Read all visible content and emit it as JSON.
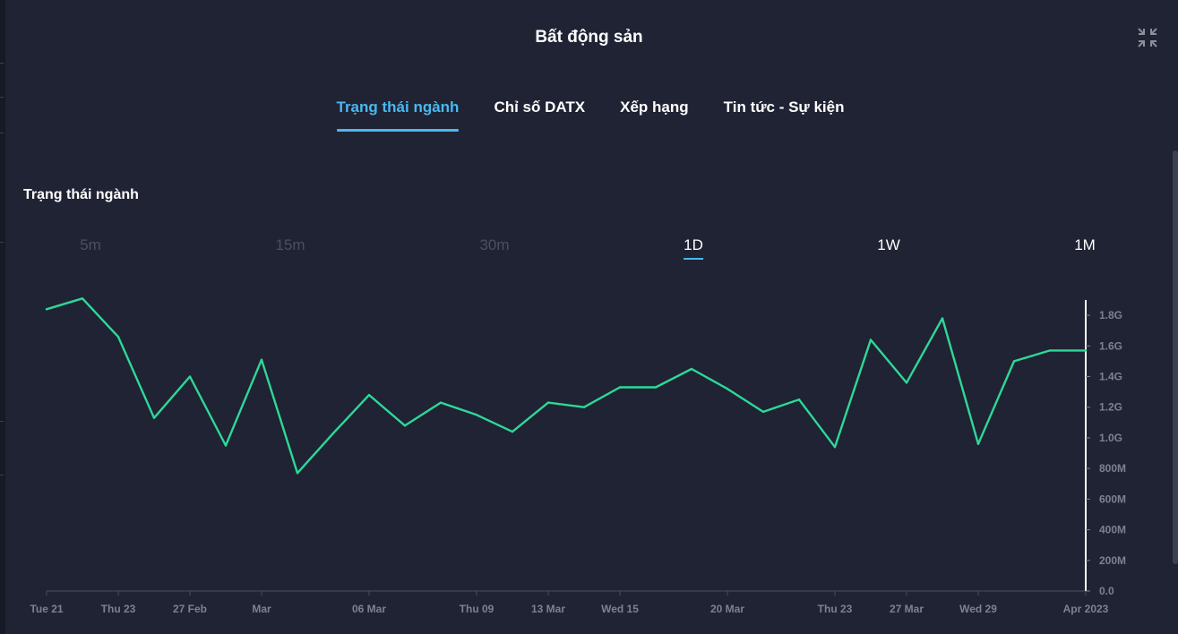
{
  "modal": {
    "title": "Bất động sản",
    "collapse_icon": "collapse-icon"
  },
  "tabs": [
    {
      "label": "Trạng thái ngành",
      "active": true
    },
    {
      "label": "Chỉ số DATX",
      "active": false
    },
    {
      "label": "Xếp hạng",
      "active": false
    },
    {
      "label": "Tin tức - Sự kiện",
      "active": false
    }
  ],
  "section": {
    "title": "Trạng thái ngành"
  },
  "ranges": [
    {
      "label": "5m",
      "enabled": false,
      "selected": false
    },
    {
      "label": "15m",
      "enabled": false,
      "selected": false
    },
    {
      "label": "30m",
      "enabled": false,
      "selected": false
    },
    {
      "label": "1D",
      "enabled": true,
      "selected": true
    },
    {
      "label": "1W",
      "enabled": true,
      "selected": false
    },
    {
      "label": "1M",
      "enabled": true,
      "selected": false
    }
  ],
  "colors": {
    "line": "#2ed899",
    "accent": "#4ab8f0",
    "background": "#1f2333",
    "axis_text": "#7c8294"
  },
  "chart_data": {
    "type": "line",
    "title": "",
    "xlabel": "",
    "ylabel": "",
    "ylim": [
      0,
      1.9
    ],
    "y_unit": "billions",
    "y_axis_position": "right",
    "grid": false,
    "y_ticks": [
      {
        "value": 0.0,
        "label": "0.0"
      },
      {
        "value": 0.2,
        "label": "200M"
      },
      {
        "value": 0.4,
        "label": "400M"
      },
      {
        "value": 0.6,
        "label": "600M"
      },
      {
        "value": 0.8,
        "label": "800M"
      },
      {
        "value": 1.0,
        "label": "1.0G"
      },
      {
        "value": 1.2,
        "label": "1.2G"
      },
      {
        "value": 1.4,
        "label": "1.4G"
      },
      {
        "value": 1.6,
        "label": "1.6G"
      },
      {
        "value": 1.8,
        "label": "1.8G"
      }
    ],
    "x": [
      "Feb 21",
      "Feb 22",
      "Feb 23",
      "Feb 24",
      "Feb 27",
      "Feb 28",
      "Mar 1",
      "Mar 2",
      "Mar 3",
      "Mar 6",
      "Mar 7",
      "Mar 8",
      "Mar 9",
      "Mar 10",
      "Mar 13",
      "Mar 14",
      "Mar 15",
      "Mar 16",
      "Mar 17",
      "Mar 20",
      "Mar 21",
      "Mar 22",
      "Mar 23",
      "Mar 24",
      "Mar 27",
      "Mar 28",
      "Mar 29",
      "Mar 30",
      "Mar 31",
      "Apr 3"
    ],
    "x_tick_labels": [
      {
        "index": 0,
        "label": "Tue 21"
      },
      {
        "index": 2,
        "label": "Thu 23"
      },
      {
        "index": 4,
        "label": "27 Feb"
      },
      {
        "index": 6,
        "label": "Mar"
      },
      {
        "index": 9,
        "label": "06 Mar"
      },
      {
        "index": 12,
        "label": "Thu 09"
      },
      {
        "index": 14,
        "label": "13 Mar"
      },
      {
        "index": 16,
        "label": "Wed 15"
      },
      {
        "index": 19,
        "label": "20 Mar"
      },
      {
        "index": 22,
        "label": "Thu 23"
      },
      {
        "index": 24,
        "label": "27 Mar"
      },
      {
        "index": 26,
        "label": "Wed 29"
      },
      {
        "index": 29,
        "label": "Apr 2023"
      }
    ],
    "series": [
      {
        "values": [
          1.84,
          1.91,
          1.66,
          1.13,
          1.4,
          0.95,
          1.51,
          0.77,
          1.03,
          1.28,
          1.08,
          1.23,
          1.15,
          1.04,
          1.23,
          1.2,
          1.33,
          1.33,
          1.45,
          1.32,
          1.17,
          1.25,
          0.94,
          1.64,
          1.36,
          1.78,
          0.96,
          1.5,
          1.57,
          1.57
        ]
      }
    ]
  }
}
